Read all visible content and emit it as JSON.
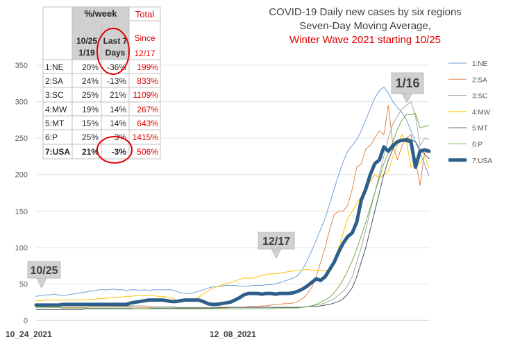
{
  "chart_data": {
    "type": "line",
    "title_lines": [
      {
        "text": "COVID-19 Daily new cases by six regions",
        "color": "#404040"
      },
      {
        "text": "Seven-Day Moving Average,",
        "color": "#404040"
      },
      {
        "text": "Winter Wave 2021 starting 10/25",
        "color": "#e00000"
      }
    ],
    "x_tick_labels": [
      "10_24_2021",
      "12_08_2021"
    ],
    "ylim": [
      0,
      350
    ],
    "y_ticks": [
      0,
      50,
      100,
      150,
      200,
      250,
      300,
      350
    ],
    "grid": "horizontal",
    "legend_position": "right",
    "x_index_range": [
      0,
      87
    ],
    "series": [
      {
        "name": "1:NE",
        "color": "#6f9fd8",
        "width": 1,
        "values": [
          33,
          34,
          35,
          35,
          36,
          35,
          34,
          35,
          36,
          37,
          38,
          39,
          40,
          41,
          42,
          42,
          42,
          43,
          42,
          42,
          41,
          42,
          42,
          41,
          42,
          41,
          42,
          42,
          42,
          42,
          42,
          40,
          38,
          37,
          37,
          38,
          40,
          42,
          44,
          46,
          46,
          47,
          48,
          48,
          48,
          47,
          47,
          47,
          48,
          48,
          48,
          49,
          49,
          50,
          52,
          54,
          56,
          58,
          62,
          70,
          82,
          95,
          110,
          125,
          140,
          160,
          180,
          200,
          218,
          232,
          240,
          248,
          260,
          275,
          290,
          305,
          315,
          320,
          312,
          300,
          292,
          285,
          275,
          260,
          245,
          230,
          215,
          198
        ]
      },
      {
        "name": "2:SA",
        "color": "#e0844a",
        "width": 1,
        "values": [
          20,
          19,
          19,
          18,
          18,
          18,
          18,
          18,
          18,
          18,
          18,
          18,
          19,
          19,
          19,
          19,
          19,
          19,
          19,
          19,
          19,
          19,
          18,
          18,
          18,
          18,
          17,
          17,
          17,
          17,
          17,
          17,
          16,
          16,
          16,
          16,
          16,
          16,
          16,
          17,
          17,
          17,
          17,
          18,
          18,
          18,
          18,
          19,
          19,
          19,
          20,
          20,
          21,
          22,
          22,
          23,
          23,
          24,
          26,
          30,
          36,
          45,
          60,
          80,
          100,
          125,
          145,
          150,
          150,
          158,
          180,
          210,
          215,
          235,
          240,
          250,
          260,
          255,
          295,
          240,
          220,
          240,
          250,
          255,
          220,
          185,
          230,
          235
        ]
      },
      {
        "name": "3:SC",
        "color": "#a6a6a6",
        "width": 1,
        "values": [
          22,
          22,
          22,
          22,
          22,
          22,
          22,
          22,
          22,
          22,
          22,
          22,
          22,
          21,
          21,
          21,
          21,
          20,
          20,
          20,
          20,
          20,
          20,
          20,
          20,
          19,
          19,
          19,
          19,
          19,
          19,
          18,
          18,
          18,
          18,
          18,
          18,
          18,
          18,
          18,
          18,
          18,
          18,
          18,
          18,
          18,
          18,
          18,
          18,
          18,
          18,
          18,
          18,
          18,
          18,
          18,
          18,
          18,
          18,
          18,
          19,
          20,
          21,
          22,
          24,
          27,
          30,
          35,
          40,
          48,
          60,
          80,
          100,
          125,
          150,
          175,
          200,
          225,
          250,
          270,
          280,
          290,
          295,
          300,
          280,
          240,
          250,
          248
        ]
      },
      {
        "name": "4:MW",
        "color": "#ffc000",
        "width": 1,
        "values": [
          27,
          27,
          28,
          28,
          28,
          28,
          28,
          28,
          28,
          28,
          28,
          28,
          29,
          29,
          30,
          30,
          31,
          31,
          32,
          32,
          33,
          33,
          34,
          34,
          34,
          34,
          34,
          33,
          33,
          32,
          31,
          28,
          26,
          26,
          27,
          29,
          32,
          36,
          40,
          44,
          46,
          48,
          50,
          52,
          54,
          56,
          58,
          58,
          58,
          60,
          62,
          63,
          64,
          64,
          65,
          66,
          67,
          68,
          69,
          69,
          70,
          69,
          68,
          68,
          68,
          70,
          80,
          100,
          120,
          140,
          150,
          160,
          170,
          180,
          190,
          200,
          195,
          200,
          205,
          225,
          240,
          255,
          245,
          210,
          215,
          215,
          225,
          210
        ]
      },
      {
        "name": "5:MT",
        "color": "#44546a",
        "width": 1,
        "values": [
          15,
          15,
          15,
          15,
          15,
          15,
          15,
          15,
          15,
          15,
          15,
          16,
          16,
          16,
          16,
          16,
          16,
          16,
          16,
          16,
          16,
          16,
          16,
          16,
          16,
          16,
          17,
          17,
          17,
          17,
          17,
          17,
          17,
          17,
          17,
          17,
          17,
          17,
          17,
          17,
          17,
          18,
          18,
          18,
          18,
          18,
          18,
          18,
          18,
          18,
          18,
          18,
          18,
          18,
          18,
          18,
          18,
          18,
          18,
          18,
          19,
          19,
          19,
          20,
          21,
          22,
          24,
          26,
          30,
          36,
          45,
          60,
          80,
          100,
          125,
          150,
          175,
          200,
          220,
          235,
          245,
          248,
          250,
          248,
          245,
          235,
          228,
          222
        ]
      },
      {
        "name": "6:P",
        "color": "#70ad47",
        "width": 1,
        "values": [
          18,
          18,
          18,
          18,
          18,
          18,
          17,
          17,
          17,
          17,
          17,
          17,
          17,
          17,
          17,
          17,
          17,
          17,
          17,
          17,
          17,
          17,
          16,
          16,
          16,
          16,
          16,
          16,
          16,
          16,
          16,
          16,
          16,
          16,
          16,
          16,
          16,
          16,
          16,
          16,
          16,
          16,
          16,
          16,
          16,
          16,
          16,
          16,
          16,
          16,
          16,
          16,
          16,
          17,
          17,
          17,
          17,
          17,
          17,
          18,
          19,
          20,
          22,
          25,
          28,
          32,
          38,
          46,
          56,
          68,
          82,
          98,
          116,
          135,
          155,
          175,
          195,
          215,
          230,
          245,
          262,
          275,
          282,
          282,
          284,
          264,
          266,
          267
        ]
      },
      {
        "name": "7:USA",
        "color": "#2e5f8a",
        "width": 5,
        "values": [
          21,
          21,
          21,
          21,
          21,
          21,
          22,
          22,
          22,
          22,
          22,
          22,
          22,
          22,
          22,
          22,
          22,
          22,
          22,
          22,
          22,
          24,
          25,
          26,
          27,
          28,
          28,
          28,
          28,
          27,
          26,
          26,
          27,
          28,
          28,
          28,
          28,
          26,
          23,
          22,
          22,
          23,
          24,
          25,
          28,
          31,
          35,
          37,
          37,
          37,
          36,
          37,
          37,
          36,
          37,
          37,
          37,
          38,
          40,
          43,
          47,
          52,
          57,
          55,
          60,
          70,
          80,
          94,
          106,
          115,
          120,
          135,
          165,
          180,
          200,
          215,
          220,
          238,
          232,
          240,
          245,
          247,
          247,
          245,
          210,
          232,
          234,
          232
        ]
      }
    ],
    "callouts": [
      {
        "label": "10/25"
      },
      {
        "label": "12/17"
      },
      {
        "label": "1/16"
      }
    ],
    "table": {
      "header_pct_week": "%/week",
      "header_total": "Total",
      "col1_line1": "10/25",
      "col1_line2": "1/19",
      "col2_line1": "Last 7",
      "col2_line2": "Days",
      "col3_line1": "Since",
      "col3_line2": "12/17",
      "rows": [
        {
          "region": "1:NE",
          "since_1025": "20%",
          "last7": "-36%",
          "since_1217": "199%"
        },
        {
          "region": "2:SA",
          "since_1025": "24%",
          "last7": "-13%",
          "since_1217": "833%"
        },
        {
          "region": "3:SC",
          "since_1025": "25%",
          "last7": "21%",
          "since_1217": "1109%"
        },
        {
          "region": "4:MW",
          "since_1025": "19%",
          "last7": "14%",
          "since_1217": "267%"
        },
        {
          "region": "5:MT",
          "since_1025": "15%",
          "last7": "14%",
          "since_1217": "643%"
        },
        {
          "region": "6:P",
          "since_1025": "25%",
          "last7": "3%",
          "since_1217": "1415%"
        },
        {
          "region": "7:USA",
          "since_1025": "21%",
          "last7": "-3%",
          "since_1217": "506%"
        }
      ]
    }
  }
}
